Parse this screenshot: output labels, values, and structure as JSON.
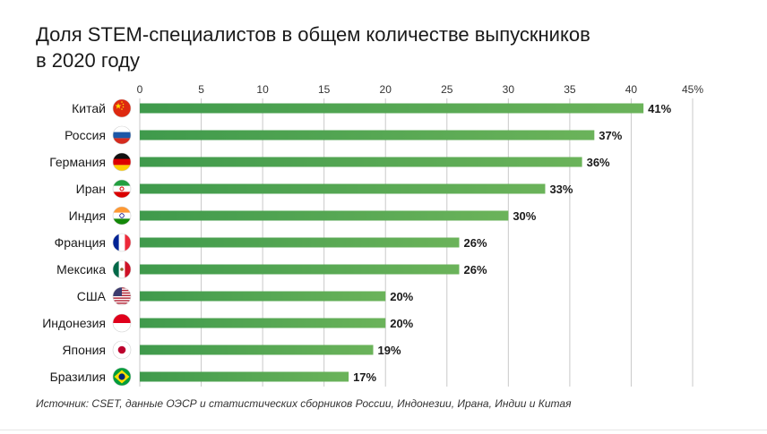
{
  "chart_data": {
    "type": "bar",
    "orientation": "horizontal",
    "title": "Доля STEM-специалистов в общем количестве выпускников в 2020 году",
    "title_lines": [
      "Доля STEM-специалистов в общем количестве выпускников",
      "в 2020 году"
    ],
    "categories": [
      "Китай",
      "Россия",
      "Германия",
      "Иран",
      "Индия",
      "Франция",
      "Мексика",
      "США",
      "Индонезия",
      "Япония",
      "Бразилия"
    ],
    "values": [
      41,
      37,
      36,
      33,
      30,
      26,
      26,
      20,
      20,
      19,
      17
    ],
    "value_labels": [
      "41%",
      "37%",
      "36%",
      "33%",
      "30%",
      "26%",
      "26%",
      "20%",
      "20%",
      "19%",
      "17%"
    ],
    "flag_icons": [
      "china-flag-icon",
      "russia-flag-icon",
      "germany-flag-icon",
      "iran-flag-icon",
      "india-flag-icon",
      "france-flag-icon",
      "mexico-flag-icon",
      "usa-flag-icon",
      "indonesia-flag-icon",
      "japan-flag-icon",
      "brazil-flag-icon"
    ],
    "x_ticks": [
      0,
      5,
      10,
      15,
      20,
      25,
      30,
      35,
      40,
      45
    ],
    "x_tick_labels": [
      "0",
      "5",
      "10",
      "15",
      "20",
      "25",
      "30",
      "35",
      "40",
      "45%"
    ],
    "xlim": [
      0,
      45
    ],
    "axis_position": "top",
    "grid": true,
    "bar_color_start": "#3f9a4c",
    "bar_color_end": "#6bb35a",
    "source": "Источник: CSET, данные ОЭСР и статистических сборников России, Индонезии, Ирана, Индии и Китая"
  }
}
